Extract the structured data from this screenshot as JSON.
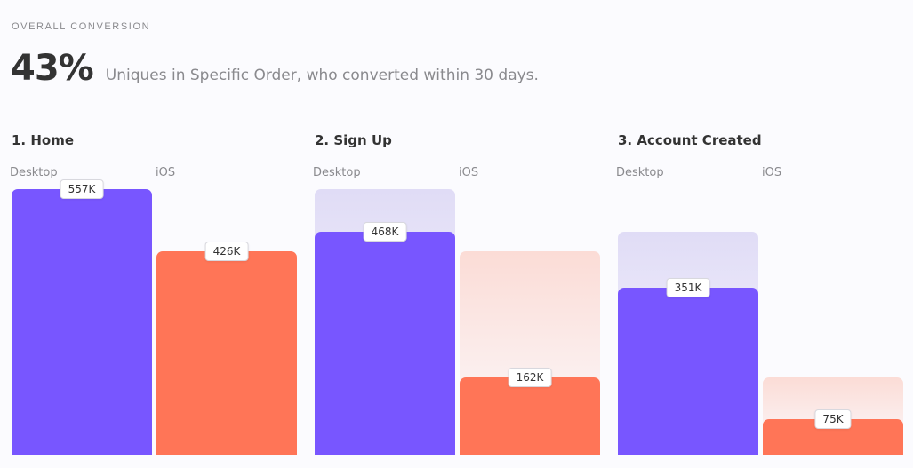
{
  "header": {
    "label": "OVERALL CONVERSION",
    "percent": "43%",
    "description": "Uniques in Specific Order, who converted within 30 days."
  },
  "colors": {
    "desktop": "#7856ff",
    "ios": "#ff7557"
  },
  "chart_data": {
    "type": "bar",
    "categories": [
      "1. Home",
      "2. Sign Up",
      "3. Account Created"
    ],
    "series": [
      {
        "name": "Desktop",
        "values": [
          557,
          468,
          351
        ],
        "labels": [
          "557K",
          "468K",
          "351K"
        ]
      },
      {
        "name": "iOS",
        "values": [
          426,
          162,
          75
        ],
        "labels": [
          "426K",
          "162K",
          "75K"
        ]
      }
    ],
    "ylim": [
      0,
      557
    ]
  }
}
